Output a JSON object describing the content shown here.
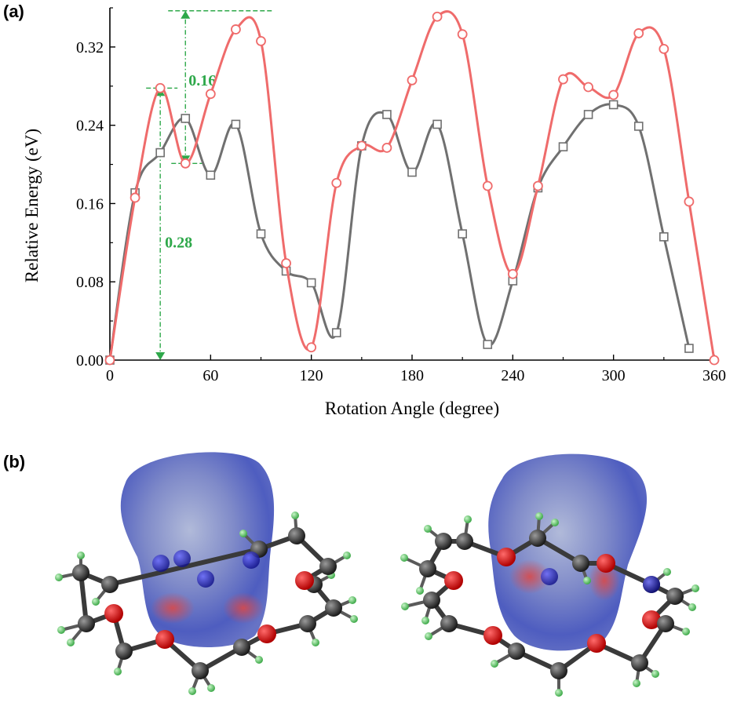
{
  "panel_labels": {
    "a": "(a)",
    "b": "(b)"
  },
  "chart_data": {
    "type": "line",
    "xlabel": "Rotation Angle (degree)",
    "ylabel": "Relative Energy (eV)",
    "xlim": [
      0,
      360
    ],
    "ylim": [
      0,
      0.36
    ],
    "xticks": [
      0,
      60,
      120,
      180,
      240,
      300,
      360
    ],
    "yticks": [
      0.0,
      0.08,
      0.16,
      0.24,
      0.32
    ],
    "ytick_labels": [
      "0.00",
      "0.08",
      "0.16",
      "0.24",
      "0.32"
    ],
    "grid": false,
    "legend": "none",
    "series": [
      {
        "marker": "square",
        "color": "#707070",
        "x": [
          0,
          15,
          30,
          45,
          60,
          75,
          90,
          105,
          120,
          135,
          150,
          165,
          180,
          195,
          210,
          225,
          240,
          255,
          270,
          285,
          300,
          315,
          330,
          345
        ],
        "y": [
          0.0,
          0.171,
          0.212,
          0.247,
          0.189,
          0.241,
          0.129,
          0.091,
          0.079,
          0.028,
          0.219,
          0.251,
          0.192,
          0.241,
          0.129,
          0.016,
          0.081,
          0.176,
          0.218,
          0.251,
          0.261,
          0.239,
          0.126,
          0.012
        ]
      },
      {
        "marker": "circle",
        "color": "#ef6b6b",
        "x": [
          0,
          15,
          30,
          45,
          60,
          75,
          90,
          105,
          120,
          135,
          150,
          165,
          180,
          195,
          210,
          225,
          240,
          255,
          270,
          285,
          300,
          315,
          330,
          345,
          360
        ],
        "y": [
          0.0,
          0.166,
          0.278,
          0.201,
          0.272,
          0.338,
          0.326,
          0.099,
          0.013,
          0.181,
          0.219,
          0.217,
          0.286,
          0.351,
          0.333,
          0.178,
          0.088,
          0.178,
          0.287,
          0.279,
          0.271,
          0.334,
          0.318,
          0.162,
          0.0
        ]
      }
    ],
    "annotations": [
      {
        "text": "0.16",
        "from": [
          45,
          0.201
        ],
        "to": [
          45,
          0.357
        ]
      },
      {
        "text": "0.28",
        "from": [
          30,
          0.0
        ],
        "to": [
          30,
          0.278
        ]
      }
    ]
  }
}
